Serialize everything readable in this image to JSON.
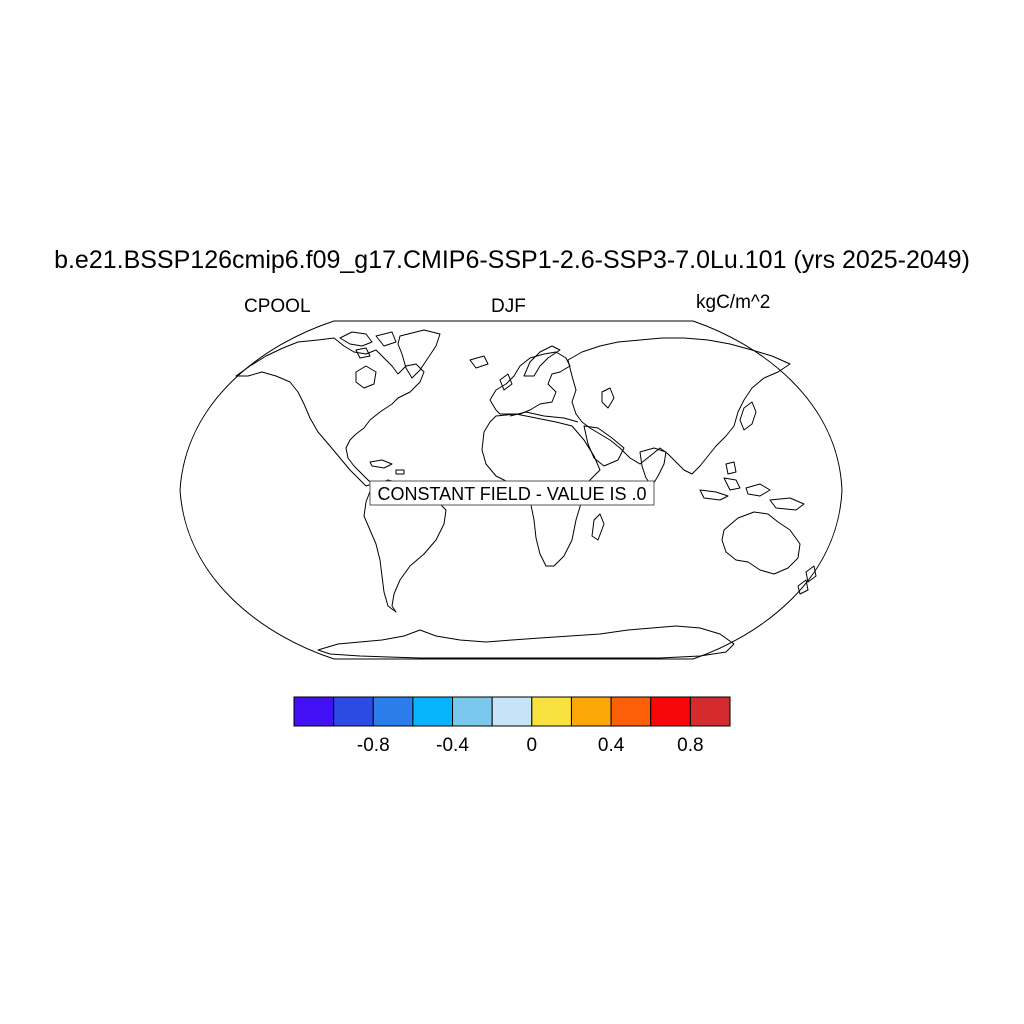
{
  "title": "b.e21.BSSP126cmip6.f09_g17.CMIP6-SSP1-2.6-SSP3-7.0Lu.101 (yrs 2025-2049)",
  "left_string": "CPOOL",
  "center_string": "DJF",
  "right_string": "kgC/m^2",
  "notice": "CONSTANT FIELD - VALUE IS .0",
  "colorbar": {
    "colors": [
      "#4210F5",
      "#2B4BE4",
      "#2B7DEC",
      "#08B4FC",
      "#7BC8EE",
      "#C5E4F8",
      "#F9E23F",
      "#FCA608",
      "#FC5F07",
      "#F70709",
      "#D42B2E"
    ],
    "tick_labels": [
      "-0.8",
      "-0.4",
      "0",
      "0.4",
      "0.8"
    ],
    "tick_values": [
      -0.8,
      -0.4,
      0,
      0.4,
      0.8
    ],
    "levels": [
      -1.0,
      -0.8,
      -0.6,
      -0.4,
      -0.2,
      0,
      0.2,
      0.4,
      0.6,
      0.8,
      1.0
    ]
  },
  "chart_data": {
    "type": "heatmap",
    "variable": "CPOOL",
    "season": "DJF",
    "units": "kgC/m^2",
    "projection": "Robinson",
    "constant_value": 0.0
  }
}
